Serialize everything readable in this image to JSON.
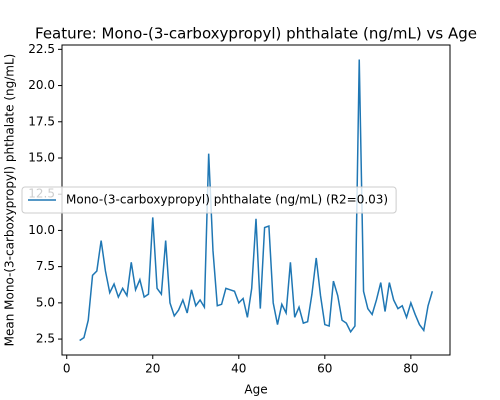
{
  "chart_data": {
    "type": "line",
    "title": "Feature: Mono-(3-carboxypropyl) phthalate (ng/mL) vs Age",
    "x_label": "Age",
    "y_label": "Mean Mono-(3-carboxypropyl) phthalate (ng/mL)",
    "x": [
      3,
      4,
      5,
      6,
      7,
      8,
      9,
      10,
      11,
      12,
      13,
      14,
      15,
      16,
      17,
      18,
      19,
      20,
      21,
      22,
      23,
      24,
      25,
      26,
      27,
      28,
      29,
      30,
      31,
      32,
      33,
      34,
      35,
      36,
      37,
      38,
      39,
      40,
      41,
      42,
      43,
      44,
      45,
      46,
      47,
      48,
      49,
      50,
      51,
      52,
      53,
      54,
      55,
      56,
      57,
      58,
      59,
      60,
      61,
      62,
      63,
      64,
      65,
      66,
      67,
      68,
      69,
      70,
      71,
      72,
      73,
      74,
      75,
      76,
      77,
      78,
      79,
      80,
      81,
      82,
      83,
      84,
      85
    ],
    "series": [
      {
        "name": "Mono-(3-carboxypropyl) phthalate (ng/mL) (R2=0.03)",
        "color": "#1f77b4",
        "values": [
          2.4,
          2.6,
          3.8,
          6.9,
          7.2,
          9.3,
          7.2,
          5.7,
          6.3,
          5.4,
          6.0,
          5.5,
          7.8,
          5.9,
          6.6,
          5.4,
          5.6,
          10.9,
          6.0,
          5.6,
          9.3,
          5.0,
          4.1,
          4.5,
          5.2,
          4.3,
          5.9,
          4.8,
          5.2,
          4.7,
          15.3,
          8.6,
          4.8,
          4.9,
          6.0,
          5.9,
          5.8,
          5.0,
          5.3,
          4.0,
          6.0,
          10.8,
          4.6,
          10.2,
          10.3,
          5.0,
          3.5,
          4.9,
          4.3,
          7.8,
          4.0,
          4.7,
          3.6,
          3.7,
          5.6,
          8.1,
          5.5,
          3.5,
          3.4,
          6.5,
          5.5,
          3.8,
          3.6,
          3.0,
          3.4,
          21.8,
          5.8,
          4.6,
          4.2,
          5.2,
          6.4,
          4.4,
          6.4,
          5.2,
          4.6,
          4.8,
          4.0,
          5.0,
          4.2,
          3.5,
          3.1,
          4.8,
          5.8
        ]
      }
    ],
    "xlim": [
      -1.1,
      89.1
    ],
    "xticks": [
      0,
      20,
      40,
      60,
      80
    ],
    "ylim": [
      1.4,
      22.8
    ],
    "yticks": [
      2.5,
      {
        "value": 5,
        "label": "5.0"
      },
      7.5,
      {
        "value": 10,
        "label": "10.0"
      },
      12.5,
      {
        "value": 15,
        "label": "15.0"
      },
      17.5,
      {
        "value": 20,
        "label": "20.0"
      },
      22.5
    ],
    "legend": "center left"
  }
}
